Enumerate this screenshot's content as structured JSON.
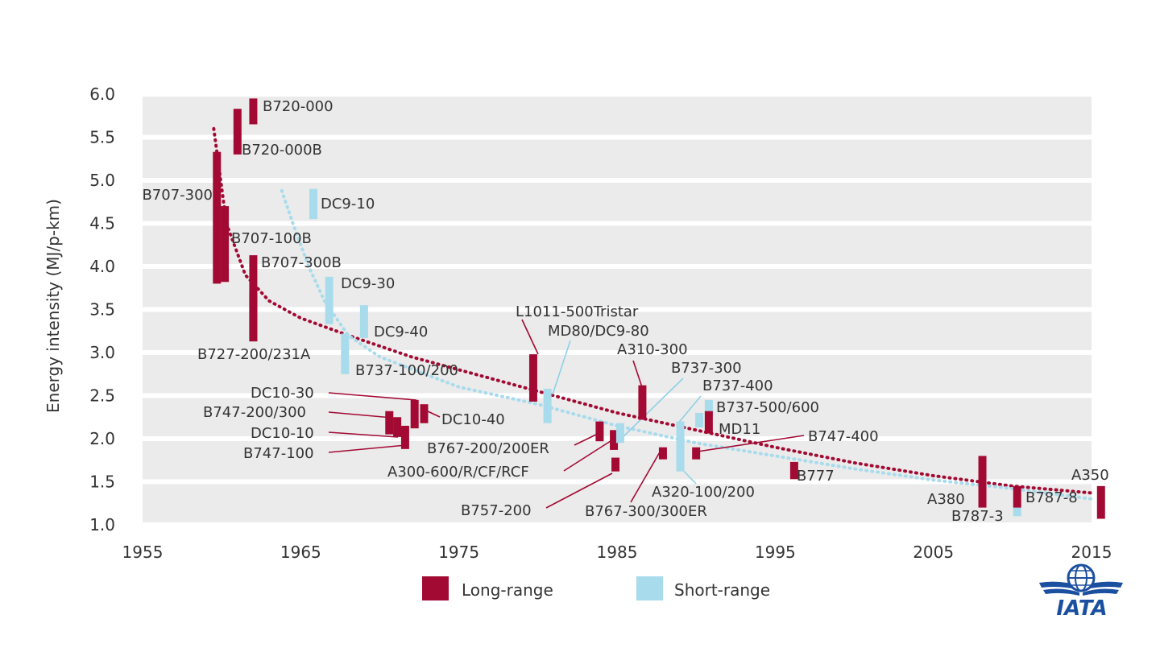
{
  "colors": {
    "long_range": "#a30a33",
    "short_range": "#a8dbec",
    "grid_band": "#ebebeb",
    "label_text": "#333333",
    "leader_long": "#a30a33",
    "leader_short": "#8fd0e6",
    "iata_blue": "#1b4fa0"
  },
  "logo": {
    "text": "IATA",
    "icon": "iata-globe-wings-icon"
  },
  "chart_data": {
    "type": "scatter",
    "title": "",
    "xlabel": "",
    "ylabel": "Energy intensity (MJ/p-km)",
    "xlim": [
      1955,
      2016
    ],
    "ylim": [
      1.0,
      6.0
    ],
    "xticks": [
      1955,
      1965,
      1975,
      1985,
      1995,
      2005,
      2015
    ],
    "yticks": [
      1.0,
      1.5,
      2.0,
      2.5,
      3.0,
      3.5,
      4.0,
      4.5,
      5.0,
      5.5,
      6.0
    ],
    "ytick_labels": [
      "1.0",
      "1.5",
      "2.0",
      "2.5",
      "3.0",
      "3.5",
      "4.0",
      "4.5",
      "5.0",
      "5.5",
      "6.0"
    ],
    "grid": true,
    "legend_position": "bottom-center",
    "legend": [
      {
        "name": "Long-range",
        "category": "long"
      },
      {
        "name": "Short-range",
        "category": "short"
      }
    ],
    "aircraft": [
      {
        "name": "B720-000",
        "category": "long",
        "year": 1962,
        "low": 5.65,
        "high": 5.95
      },
      {
        "name": "B720-000B",
        "category": "long",
        "year": 1961,
        "low": 5.3,
        "high": 5.83
      },
      {
        "name": "B707-300",
        "category": "long",
        "year": 1959.7,
        "low": 3.8,
        "high": 5.33
      },
      {
        "name": "B707-100B",
        "category": "long",
        "year": 1960.2,
        "low": 3.82,
        "high": 4.7
      },
      {
        "name": "B707-300B",
        "category": "long",
        "year": 1962,
        "low": 3.13,
        "high": 4.13
      },
      {
        "name": "B727-200/231A",
        "category": "long",
        "year": 1962,
        "low": 3.13,
        "high": 3.7
      },
      {
        "name": "DC9-10",
        "category": "short",
        "year": 1965.8,
        "low": 4.55,
        "high": 4.9
      },
      {
        "name": "DC9-30",
        "category": "short",
        "year": 1966.8,
        "low": 3.33,
        "high": 3.88
      },
      {
        "name": "DC9-40",
        "category": "short",
        "year": 1969,
        "low": 3.17,
        "high": 3.55
      },
      {
        "name": "B737-100/200",
        "category": "short",
        "year": 1967.8,
        "low": 2.75,
        "high": 3.22
      },
      {
        "name": "DC10-30",
        "category": "long",
        "year": 1972.2,
        "low": 2.12,
        "high": 2.45
      },
      {
        "name": "DC10-40",
        "category": "long",
        "year": 1972.8,
        "low": 2.18,
        "high": 2.4
      },
      {
        "name": "B747-200/300",
        "category": "long",
        "year": 1970.6,
        "low": 2.05,
        "high": 2.32
      },
      {
        "name": "DC10-10",
        "category": "long",
        "year": 1971.1,
        "low": 2.02,
        "high": 2.25
      },
      {
        "name": "B747-100",
        "category": "long",
        "year": 1971.6,
        "low": 1.88,
        "high": 2.15
      },
      {
        "name": "L1011-500Tristar",
        "category": "long",
        "year": 1979.7,
        "low": 2.43,
        "high": 2.98
      },
      {
        "name": "MD80/DC9-80",
        "category": "short",
        "year": 1980.6,
        "low": 2.18,
        "high": 2.58
      },
      {
        "name": "B767-200/200ER",
        "category": "long",
        "year": 1983.9,
        "low": 1.97,
        "high": 2.2
      },
      {
        "name": "A300-600/R/CF/RCF",
        "category": "long",
        "year": 1984.8,
        "low": 1.87,
        "high": 2.1
      },
      {
        "name": "B757-200",
        "category": "long",
        "year": 1984.9,
        "low": 1.62,
        "high": 1.78
      },
      {
        "name": "A310-300",
        "category": "long",
        "year": 1986.6,
        "low": 2.22,
        "high": 2.62
      },
      {
        "name": "B737-300",
        "category": "short",
        "year": 1985.2,
        "low": 1.95,
        "high": 2.18
      },
      {
        "name": "B767-300/300ER",
        "category": "long",
        "year": 1987.9,
        "low": 1.76,
        "high": 1.9
      },
      {
        "name": "A320-100/200",
        "category": "short",
        "year": 1989,
        "low": 1.62,
        "high": 2.2
      },
      {
        "name": "B737-400",
        "category": "short",
        "year": 1990.2,
        "low": 2.13,
        "high": 2.3
      },
      {
        "name": "B737-500/600",
        "category": "short",
        "year": 1990.8,
        "low": 2.28,
        "high": 2.45
      },
      {
        "name": "MD11",
        "category": "long",
        "year": 1990.8,
        "low": 2.06,
        "high": 2.32
      },
      {
        "name": "B747-400",
        "category": "long",
        "year": 1990,
        "low": 1.76,
        "high": 1.9
      },
      {
        "name": "B777",
        "category": "long",
        "year": 1996.2,
        "low": 1.53,
        "high": 1.73
      },
      {
        "name": "A380",
        "category": "long",
        "year": 2008.1,
        "low": 1.2,
        "high": 1.8
      },
      {
        "name": "B787-3",
        "category": "short",
        "year": 2010.3,
        "low": 1.1,
        "high": 1.2
      },
      {
        "name": "B787-8",
        "category": "long",
        "year": 2010.3,
        "low": 1.2,
        "high": 1.45
      },
      {
        "name": "A350",
        "category": "long",
        "year": 2015.6,
        "low": 1.07,
        "high": 1.45
      }
    ],
    "trend_lines": [
      {
        "category": "long",
        "points": [
          [
            1959.5,
            5.6
          ],
          [
            1960.3,
            4.5
          ],
          [
            1961.5,
            3.9
          ],
          [
            1963,
            3.6
          ],
          [
            1965,
            3.4
          ],
          [
            1968,
            3.2
          ],
          [
            1972,
            2.95
          ],
          [
            1976,
            2.75
          ],
          [
            1980,
            2.55
          ],
          [
            1985,
            2.3
          ],
          [
            1990,
            2.1
          ],
          [
            1995,
            1.9
          ],
          [
            2000,
            1.72
          ],
          [
            2005,
            1.57
          ],
          [
            2010,
            1.45
          ],
          [
            2015,
            1.37
          ]
        ]
      },
      {
        "category": "short",
        "points": [
          [
            1963.8,
            4.88
          ],
          [
            1964.5,
            4.5
          ],
          [
            1965.5,
            4.0
          ],
          [
            1966.5,
            3.6
          ],
          [
            1968,
            3.2
          ],
          [
            1970,
            2.95
          ],
          [
            1975,
            2.6
          ],
          [
            1980,
            2.4
          ],
          [
            1985,
            2.15
          ],
          [
            1990,
            1.95
          ],
          [
            1995,
            1.8
          ],
          [
            2000,
            1.65
          ],
          [
            2005,
            1.52
          ],
          [
            2010,
            1.42
          ],
          [
            2015,
            1.3
          ]
        ]
      }
    ]
  }
}
